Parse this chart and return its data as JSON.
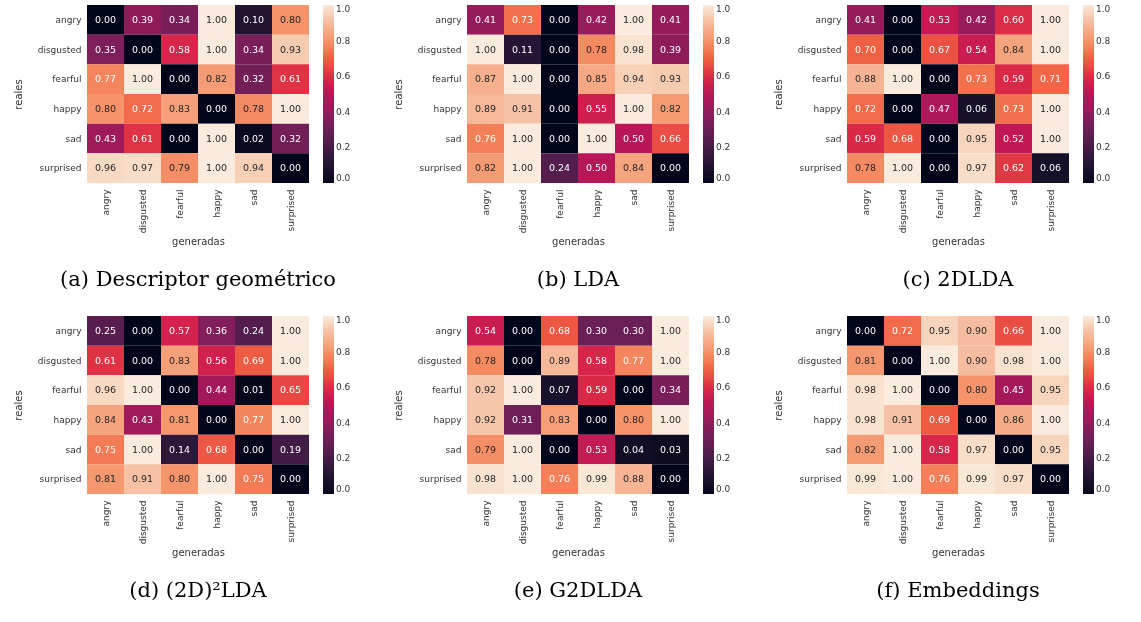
{
  "chart_data": [
    {
      "type": "heatmap",
      "title": "(a) Descriptor geométrico",
      "xlabel": "generadas",
      "ylabel": "reales",
      "categories": [
        "angry",
        "disgusted",
        "fearful",
        "happy",
        "sad",
        "surprised"
      ],
      "y_categories": [
        "angry",
        "disgusted",
        "fearful",
        "happy",
        "sad",
        "surprised"
      ],
      "cells": [
        [
          0.0,
          0.39,
          0.34,
          1.0,
          0.1,
          0.8
        ],
        [
          0.35,
          0.0,
          0.58,
          1.0,
          0.34,
          0.93
        ],
        [
          0.77,
          1.0,
          0.0,
          0.82,
          0.32,
          0.61
        ],
        [
          0.8,
          0.72,
          0.83,
          0.0,
          0.78,
          1.0
        ],
        [
          0.43,
          0.61,
          0.0,
          1.0,
          0.02,
          0.32
        ],
        [
          0.96,
          0.97,
          0.79,
          1.0,
          0.94,
          0.0
        ]
      ],
      "cell_labels": [
        [
          "0.00",
          "0.39",
          "0.34",
          "1.00",
          "0.10",
          "0.80"
        ],
        [
          "0.35",
          "0.00",
          "0.58",
          "1.00",
          "0.34",
          "0.93"
        ],
        [
          "0.77",
          "1.00",
          "0.00",
          "0.82",
          "0.32",
          "0.61"
        ],
        [
          "0.80",
          "0.72",
          "0.83",
          "0.00",
          "0.78",
          "1.00"
        ],
        [
          "0.43",
          "0.61",
          "0.00",
          "1.00",
          "0.02",
          "0.32"
        ],
        [
          "0.96",
          "0.97",
          "0.79",
          "1.00",
          "0.94",
          "0.00"
        ]
      ],
      "clim": [
        0,
        1
      ],
      "cticks": [
        {
          "value": 0,
          "label": "0.0"
        },
        {
          "value": 0.2,
          "label": "0.2"
        },
        {
          "value": 0.4,
          "label": "0.4"
        },
        {
          "value": 0.6,
          "label": "0.6"
        },
        {
          "value": 0.8,
          "label": "0.8"
        },
        {
          "value": 1,
          "label": "1.0"
        }
      ]
    },
    {
      "type": "heatmap",
      "title": "(b) LDA",
      "xlabel": "generadas",
      "ylabel": "reales",
      "categories": [
        "angry",
        "disgusted",
        "fearful",
        "happy",
        "sad",
        "surprised"
      ],
      "y_categories": [
        "angry",
        "disgusted",
        "fearful",
        "happy",
        "sad",
        "surprised"
      ],
      "cells": [
        [
          0.41,
          0.73,
          0.0,
          0.42,
          1.0,
          0.41
        ],
        [
          1.0,
          0.11,
          0.0,
          0.78,
          0.98,
          0.39
        ],
        [
          0.87,
          1.0,
          0.0,
          0.85,
          0.94,
          0.93
        ],
        [
          0.89,
          0.91,
          0.0,
          0.55,
          1.0,
          0.82
        ],
        [
          0.76,
          1.0,
          0.0,
          1.0,
          0.5,
          0.66
        ],
        [
          0.82,
          1.0,
          0.24,
          0.5,
          0.84,
          0.0
        ]
      ],
      "cell_labels": [
        [
          "0.41",
          "0.73",
          "0.00",
          "0.42",
          "1.00",
          "0.41"
        ],
        [
          "1.00",
          "0.11",
          "0.00",
          "0.78",
          "0.98",
          "0.39"
        ],
        [
          "0.87",
          "1.00",
          "0.00",
          "0.85",
          "0.94",
          "0.93"
        ],
        [
          "0.89",
          "0.91",
          "0.00",
          "0.55",
          "1.00",
          "0.82"
        ],
        [
          "0.76",
          "1.00",
          "0.00",
          "1.00",
          "0.50",
          "0.66"
        ],
        [
          "0.82",
          "1.00",
          "0.24",
          "0.50",
          "0.84",
          "0.00"
        ]
      ],
      "clim": [
        0,
        1
      ],
      "cticks": [
        {
          "value": 0,
          "label": "0.0"
        },
        {
          "value": 0.2,
          "label": "0.2"
        },
        {
          "value": 0.4,
          "label": "0.4"
        },
        {
          "value": 0.6,
          "label": "0.6"
        },
        {
          "value": 0.8,
          "label": "0.8"
        },
        {
          "value": 1,
          "label": "1.0"
        }
      ]
    },
    {
      "type": "heatmap",
      "title": "(c) 2DLDA",
      "xlabel": "generadas",
      "ylabel": "reales",
      "categories": [
        "angry",
        "disgusted",
        "fearful",
        "happy",
        "sad",
        "surprised"
      ],
      "y_categories": [
        "angry",
        "disgusted",
        "fearful",
        "happy",
        "sad",
        "surprised"
      ],
      "cells": [
        [
          0.41,
          0.0,
          0.53,
          0.42,
          0.6,
          1.0
        ],
        [
          0.7,
          0.0,
          0.67,
          0.54,
          0.84,
          1.0
        ],
        [
          0.88,
          1.0,
          0.0,
          0.73,
          0.59,
          0.71
        ],
        [
          0.72,
          0.0,
          0.47,
          0.06,
          0.73,
          1.0
        ],
        [
          0.59,
          0.68,
          0.0,
          0.95,
          0.52,
          1.0
        ],
        [
          0.78,
          1.0,
          0.0,
          0.97,
          0.62,
          0.06
        ]
      ],
      "cell_labels": [
        [
          "0.41",
          "0.00",
          "0.53",
          "0.42",
          "0.60",
          "1.00"
        ],
        [
          "0.70",
          "0.00",
          "0.67",
          "0.54",
          "0.84",
          "1.00"
        ],
        [
          "0.88",
          "1.00",
          "0.00",
          "0.73",
          "0.59",
          "0.71"
        ],
        [
          "0.72",
          "0.00",
          "0.47",
          "0.06",
          "0.73",
          "1.00"
        ],
        [
          "0.59",
          "0.68",
          "0.00",
          "0.95",
          "0.52",
          "1.00"
        ],
        [
          "0.78",
          "1.00",
          "0.00",
          "0.97",
          "0.62",
          "0.06"
        ]
      ],
      "clim": [
        0,
        1
      ],
      "cticks": [
        {
          "value": 0,
          "label": "0.0"
        },
        {
          "value": 0.2,
          "label": "0.2"
        },
        {
          "value": 0.4,
          "label": "0.4"
        },
        {
          "value": 0.6,
          "label": "0.6"
        },
        {
          "value": 0.8,
          "label": "0.8"
        },
        {
          "value": 1,
          "label": "1.0"
        }
      ]
    },
    {
      "type": "heatmap",
      "title": "(d) (2D)²LDA",
      "xlabel": "generadas",
      "ylabel": "reales",
      "categories": [
        "angry",
        "disgusted",
        "fearful",
        "happy",
        "sad",
        "surprised"
      ],
      "y_categories": [
        "angry",
        "disgusted",
        "fearful",
        "happy",
        "sad",
        "surprised"
      ],
      "cells": [
        [
          0.25,
          0.0,
          0.57,
          0.36,
          0.24,
          1.0
        ],
        [
          0.61,
          0.0,
          0.83,
          0.56,
          0.69,
          1.0
        ],
        [
          0.96,
          1.0,
          0.0,
          0.44,
          0.01,
          0.65
        ],
        [
          0.84,
          0.43,
          0.81,
          0.0,
          0.77,
          1.0
        ],
        [
          0.75,
          1.0,
          0.14,
          0.68,
          0.0,
          0.19
        ],
        [
          0.81,
          0.91,
          0.8,
          1.0,
          0.75,
          0.0
        ]
      ],
      "cell_labels": [
        [
          "0.25",
          "0.00",
          "0.57",
          "0.36",
          "0.24",
          "1.00"
        ],
        [
          "0.61",
          "0.00",
          "0.83",
          "0.56",
          "0.69",
          "1.00"
        ],
        [
          "0.96",
          "1.00",
          "0.00",
          "0.44",
          "0.01",
          "0.65"
        ],
        [
          "0.84",
          "0.43",
          "0.81",
          "0.00",
          "0.77",
          "1.00"
        ],
        [
          "0.75",
          "1.00",
          "0.14",
          "0.68",
          "0.00",
          "0.19"
        ],
        [
          "0.81",
          "0.91",
          "0.80",
          "1.00",
          "0.75",
          "0.00"
        ]
      ],
      "clim": [
        0,
        1
      ],
      "cticks": [
        {
          "value": 0,
          "label": "0.0"
        },
        {
          "value": 0.2,
          "label": "0.2"
        },
        {
          "value": 0.4,
          "label": "0.4"
        },
        {
          "value": 0.6,
          "label": "0.6"
        },
        {
          "value": 0.8,
          "label": "0.8"
        },
        {
          "value": 1,
          "label": "1.0"
        }
      ]
    },
    {
      "type": "heatmap",
      "title": "(e) G2DLDA",
      "xlabel": "generadas",
      "ylabel": "reales",
      "categories": [
        "angry",
        "disgusted",
        "fearful",
        "happy",
        "sad",
        "surprised"
      ],
      "y_categories": [
        "angry",
        "disgusted",
        "fearful",
        "happy",
        "sad",
        "surprised"
      ],
      "cells": [
        [
          0.54,
          0.0,
          0.68,
          0.3,
          0.3,
          1.0
        ],
        [
          0.78,
          0.0,
          0.89,
          0.58,
          0.77,
          1.0
        ],
        [
          0.92,
          1.0,
          0.07,
          0.59,
          0.0,
          0.34
        ],
        [
          0.92,
          0.31,
          0.83,
          0.0,
          0.8,
          1.0
        ],
        [
          0.79,
          1.0,
          0.0,
          0.53,
          0.04,
          0.03
        ],
        [
          0.98,
          1.0,
          0.76,
          0.99,
          0.88,
          0.0
        ]
      ],
      "cell_labels": [
        [
          "0.54",
          "0.00",
          "0.68",
          "0.30",
          "0.30",
          "1.00"
        ],
        [
          "0.78",
          "0.00",
          "0.89",
          "0.58",
          "0.77",
          "1.00"
        ],
        [
          "0.92",
          "1.00",
          "0.07",
          "0.59",
          "0.00",
          "0.34"
        ],
        [
          "0.92",
          "0.31",
          "0.83",
          "0.00",
          "0.80",
          "1.00"
        ],
        [
          "0.79",
          "1.00",
          "0.00",
          "0.53",
          "0.04",
          "0.03"
        ],
        [
          "0.98",
          "1.00",
          "0.76",
          "0.99",
          "0.88",
          "0.00"
        ]
      ],
      "clim": [
        0,
        1
      ],
      "cticks": [
        {
          "value": 0,
          "label": "0.0"
        },
        {
          "value": 0.2,
          "label": "0.2"
        },
        {
          "value": 0.4,
          "label": "0.4"
        },
        {
          "value": 0.6,
          "label": "0.6"
        },
        {
          "value": 0.8,
          "label": "0.8"
        },
        {
          "value": 1,
          "label": "1.0"
        }
      ]
    },
    {
      "type": "heatmap",
      "title": "(f) Embeddings",
      "xlabel": "generadas",
      "ylabel": "reales",
      "categories": [
        "angry",
        "disgusted",
        "fearful",
        "happy",
        "sad",
        "surprised"
      ],
      "y_categories": [
        "angry",
        "disgusted",
        "fearful",
        "happy",
        "sad",
        "surprised"
      ],
      "cells": [
        [
          0.0,
          0.72,
          0.95,
          0.9,
          0.66,
          1.0
        ],
        [
          0.81,
          0.0,
          1.0,
          0.9,
          0.98,
          1.0
        ],
        [
          0.98,
          1.0,
          0.0,
          0.8,
          0.45,
          0.95
        ],
        [
          0.98,
          0.91,
          0.69,
          0.0,
          0.86,
          1.0
        ],
        [
          0.82,
          1.0,
          0.58,
          0.97,
          0.0,
          0.95
        ],
        [
          0.99,
          1.0,
          0.76,
          0.99,
          0.97,
          0.0
        ]
      ],
      "cell_labels": [
        [
          "0.00",
          "0.72",
          "0.95",
          "0.90",
          "0.66",
          "1.00"
        ],
        [
          "0.81",
          "0.00",
          "1.00",
          "0.90",
          "0.98",
          "1.00"
        ],
        [
          "0.98",
          "1.00",
          "0.00",
          "0.80",
          "0.45",
          "0.95"
        ],
        [
          "0.98",
          "0.91",
          "0.69",
          "0.00",
          "0.86",
          "1.00"
        ],
        [
          "0.82",
          "1.00",
          "0.58",
          "0.97",
          "0.00",
          "0.95"
        ],
        [
          "0.99",
          "1.00",
          "0.76",
          "0.99",
          "0.97",
          "0.00"
        ]
      ],
      "clim": [
        0,
        1
      ],
      "cticks": [
        {
          "value": 0,
          "label": "0.0"
        },
        {
          "value": 0.2,
          "label": "0.2"
        },
        {
          "value": 0.4,
          "label": "0.4"
        },
        {
          "value": 0.6,
          "label": "0.6"
        },
        {
          "value": 0.8,
          "label": "0.8"
        },
        {
          "value": 1,
          "label": "1.0"
        }
      ]
    }
  ]
}
